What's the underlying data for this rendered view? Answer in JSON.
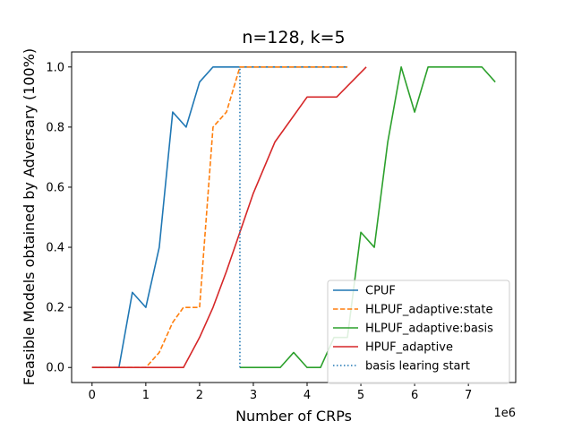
{
  "chart_data": {
    "type": "line",
    "title": "n=128, k=5",
    "xlabel": "Number of CRPs",
    "ylabel": "Feasible Models obtained by Adversary (100%)",
    "x_offset_label": "1e6",
    "xlim": [
      -0.38,
      7.88
    ],
    "ylim": [
      -0.05,
      1.05
    ],
    "x_ticks": [
      0,
      1,
      2,
      3,
      4,
      5,
      6,
      7
    ],
    "y_ticks": [
      0.0,
      0.2,
      0.4,
      0.6,
      0.8,
      1.0
    ],
    "x_tick_labels": [
      "0",
      "1",
      "2",
      "3",
      "4",
      "5",
      "6",
      "7"
    ],
    "y_tick_labels": [
      "0.0",
      "0.2",
      "0.4",
      "0.6",
      "0.8",
      "1.0"
    ],
    "legend_position": "lower-right",
    "series": [
      {
        "name": "CPUF",
        "color": "#1f77b4",
        "style": "solid",
        "x": [
          0,
          0.25,
          0.5,
          0.75,
          1.0,
          1.25,
          1.5,
          1.75,
          2.0,
          2.25,
          2.5,
          2.75,
          3.0,
          3.25,
          3.5,
          3.75,
          4.0,
          4.25,
          4.5,
          4.75
        ],
        "y": [
          0,
          0,
          0,
          0.25,
          0.2,
          0.4,
          0.85,
          0.8,
          0.95,
          1.0,
          1.0,
          1.0,
          1.0,
          1.0,
          1.0,
          1.0,
          1.0,
          1.0,
          1.0,
          1.0
        ]
      },
      {
        "name": "HLPUF_adaptive:state",
        "color": "#ff7f0e",
        "style": "dashed",
        "x": [
          0,
          0.25,
          0.5,
          0.75,
          1.0,
          1.25,
          1.5,
          1.7,
          2.0,
          2.25,
          2.5,
          2.75,
          3.0,
          3.25,
          3.5,
          3.75,
          4.0,
          4.25,
          4.5,
          4.75
        ],
        "y": [
          0,
          0,
          0,
          0,
          0,
          0.05,
          0.15,
          0.2,
          0.2,
          0.8,
          0.85,
          1.0,
          1.0,
          1.0,
          1.0,
          1.0,
          1.0,
          1.0,
          1.0,
          1.0
        ]
      },
      {
        "name": "HLPUF_adaptive:basis",
        "color": "#2ca02c",
        "style": "solid",
        "x": [
          2.75,
          3.0,
          3.25,
          3.5,
          3.75,
          4.0,
          4.25,
          4.5,
          4.75,
          5.0,
          5.25,
          5.5,
          5.75,
          6.0,
          6.25,
          6.5,
          6.75,
          7.0,
          7.25,
          7.5
        ],
        "y": [
          0,
          0,
          0,
          0,
          0.05,
          0,
          0,
          0.1,
          0.1,
          0.45,
          0.4,
          0.75,
          1.0,
          0.85,
          1.0,
          1.0,
          1.0,
          1.0,
          1.0,
          0.95
        ]
      },
      {
        "name": "HPUF_adaptive",
        "color": "#d62728",
        "style": "solid",
        "x": [
          0,
          0.25,
          0.5,
          0.75,
          1.0,
          1.25,
          1.5,
          1.7,
          2.0,
          2.25,
          2.5,
          2.75,
          3.0,
          3.4,
          4.0,
          4.55,
          5.1
        ],
        "y": [
          0,
          0,
          0,
          0,
          0,
          0,
          0,
          0,
          0.1,
          0.2,
          0.32,
          0.45,
          0.58,
          0.75,
          0.9,
          0.9,
          1.0
        ]
      },
      {
        "name": "basis learing start",
        "color": "#1f77b4",
        "style": "dotted",
        "x": [
          2.75,
          2.75
        ],
        "y": [
          0,
          1.0
        ]
      }
    ]
  }
}
